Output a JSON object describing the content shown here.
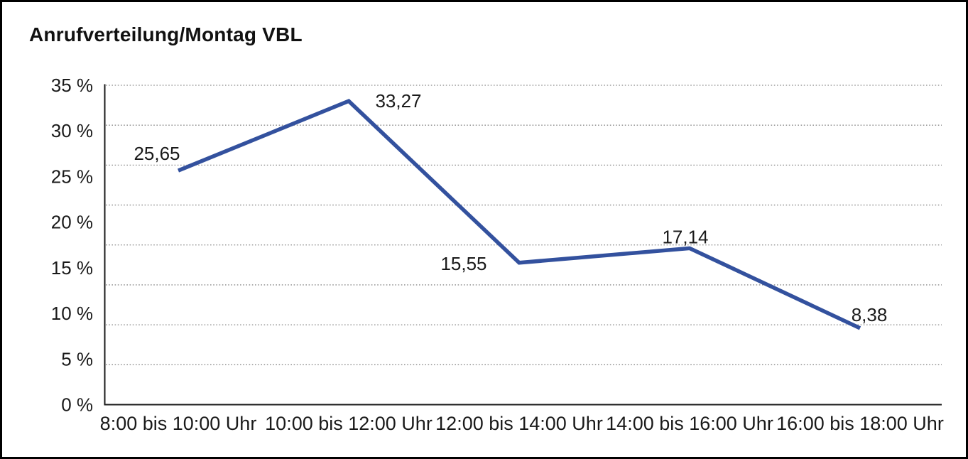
{
  "frame": {
    "background": "#ffffff",
    "border_color": "#000000"
  },
  "chart_data": {
    "type": "line",
    "title": "Anrufverteilung/Montag VBL",
    "categories": [
      "8:00 bis 10:00 Uhr",
      "10:00 bis 12:00 Uhr",
      "12:00 bis 14:00 Uhr",
      "14:00 bis 16:00 Uhr",
      "16:00 bis 18:00 Uhr"
    ],
    "values": [
      25.65,
      33.27,
      15.55,
      17.14,
      8.38
    ],
    "point_labels": [
      "25,65",
      "33,27",
      "15,55",
      "17,14",
      "8,38"
    ],
    "unit": "%",
    "ylim": [
      0,
      35
    ],
    "y_ticks": [
      {
        "value": 35,
        "label": "35 %"
      },
      {
        "value": 30,
        "label": "30 %"
      },
      {
        "value": 25,
        "label": "25 %"
      },
      {
        "value": 20,
        "label": "20 %"
      },
      {
        "value": 15,
        "label": "15 %"
      },
      {
        "value": 10,
        "label": "10 %"
      },
      {
        "value": 5,
        "label": "5 %"
      },
      {
        "value": 0,
        "label": "0 %"
      }
    ],
    "xlabel": "",
    "ylabel": "",
    "legend": "none",
    "grid": "horizontal-dotted",
    "gridline_count": 9,
    "colors": {
      "line": "#33519E",
      "text": "#1a1a1a",
      "gridline": "#8a8a8a",
      "axis": "#1a1a1a"
    }
  }
}
